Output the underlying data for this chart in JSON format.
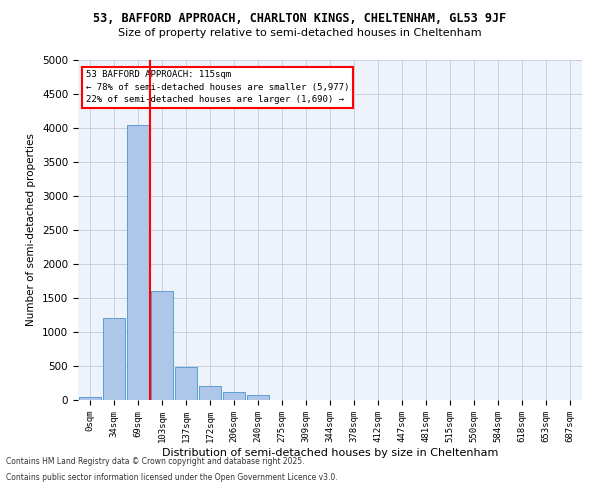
{
  "title1": "53, BAFFORD APPROACH, CHARLTON KINGS, CHELTENHAM, GL53 9JF",
  "title2": "Size of property relative to semi-detached houses in Cheltenham",
  "xlabel": "Distribution of semi-detached houses by size in Cheltenham",
  "ylabel": "Number of semi-detached properties",
  "bin_labels": [
    "0sqm",
    "34sqm",
    "69sqm",
    "103sqm",
    "137sqm",
    "172sqm",
    "206sqm",
    "240sqm",
    "275sqm",
    "309sqm",
    "344sqm",
    "378sqm",
    "412sqm",
    "447sqm",
    "481sqm",
    "515sqm",
    "550sqm",
    "584sqm",
    "618sqm",
    "653sqm",
    "687sqm"
  ],
  "bar_values": [
    50,
    1200,
    4050,
    1600,
    480,
    210,
    120,
    80,
    0,
    0,
    0,
    0,
    0,
    0,
    0,
    0,
    0,
    0,
    0,
    0,
    0
  ],
  "bar_color": "#aec6e8",
  "bar_edge_color": "#5a9fd4",
  "vline_x": 3.0,
  "annotation_title": "53 BAFFORD APPROACH: 115sqm",
  "annotation_line1": "← 78% of semi-detached houses are smaller (5,977)",
  "annotation_line2": "22% of semi-detached houses are larger (1,690) →",
  "annotation_box_color": "white",
  "annotation_box_edge": "red",
  "vline_color": "red",
  "ylim": [
    0,
    5000
  ],
  "yticks": [
    0,
    500,
    1000,
    1500,
    2000,
    2500,
    3000,
    3500,
    4000,
    4500,
    5000
  ],
  "footer1": "Contains HM Land Registry data © Crown copyright and database right 2025.",
  "footer2": "Contains public sector information licensed under the Open Government Licence v3.0.",
  "bg_color": "#eef2fb",
  "grid_color": "#c8d0e0"
}
